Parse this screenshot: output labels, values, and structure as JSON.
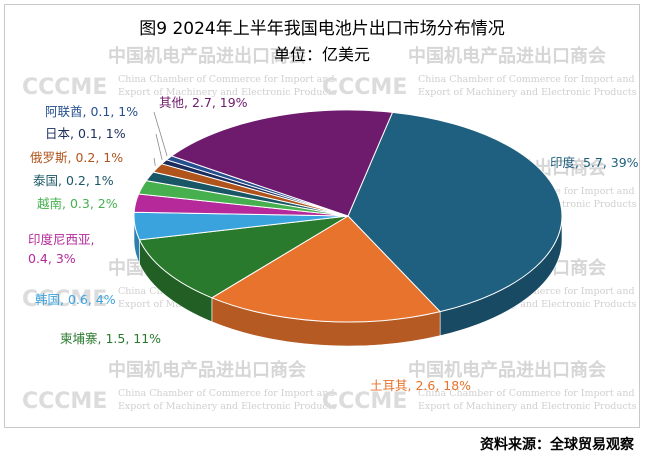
{
  "chart_data": {
    "type": "pie",
    "title": "图9  2024年上半年我国电池片出口市场分布情况",
    "subtitle": "单位：亿美元",
    "series": [
      {
        "name": "印度",
        "value": 5.7,
        "percent": "39%",
        "color": "#1f5f7f",
        "label": "印度, 5.7, 39%"
      },
      {
        "name": "土耳其",
        "value": 2.6,
        "percent": "18%",
        "color": "#e8732d",
        "label": "土耳其, 2.6, 18%"
      },
      {
        "name": "柬埔寨",
        "value": 1.5,
        "percent": "11%",
        "color": "#2a7a2e",
        "label": "柬埔寨, 1.5, 11%"
      },
      {
        "name": "韩国",
        "value": 0.6,
        "percent": "4%",
        "color": "#3aa3de",
        "label": "韩国, 0.6, 4%"
      },
      {
        "name": "印度尼西亚",
        "value": 0.4,
        "percent": "3%",
        "color": "#b5299b",
        "label": "印度尼西亚,\n0.4, 3%"
      },
      {
        "name": "越南",
        "value": 0.3,
        "percent": "2%",
        "color": "#46b04e",
        "label": "越南, 0.3, 2%"
      },
      {
        "name": "泰国",
        "value": 0.2,
        "percent": "1%",
        "color": "#1a5766",
        "label": "泰国, 0.2, 1%"
      },
      {
        "name": "俄罗斯",
        "value": 0.2,
        "percent": "1%",
        "color": "#b0541c",
        "label": "俄罗斯, 0.2, 1%"
      },
      {
        "name": "日本",
        "value": 0.1,
        "percent": "1%",
        "color": "#1b2d5c",
        "label": "日本, 0.1, 1%"
      },
      {
        "name": "阿联酋",
        "value": 0.1,
        "percent": "1%",
        "color": "#254f8f",
        "label": "阿联酋, 0.1, 1%"
      },
      {
        "name": "其他",
        "value": 2.7,
        "percent": "19%",
        "color": "#6e1a6d",
        "label": "其他, 2.7, 19%"
      }
    ]
  },
  "watermark": {
    "cn": "中国机电产品进出口商会",
    "en_line1": "China Chamber of Commerce for Import and",
    "en_line2": "Export of Machinery and Electronic Products",
    "logo": "CCCME"
  },
  "source": "资料来源：全球贸易观察"
}
